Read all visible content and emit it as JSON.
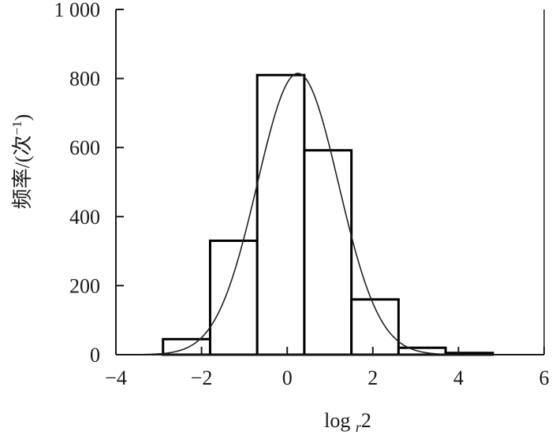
{
  "chart_data": {
    "type": "bar",
    "title": "",
    "xlabel_main": "log",
    "xlabel_sub": "r",
    "xlabel_tail": "2",
    "ylabel": "频率/(次",
    "ylabel_sup": "−1",
    "ylabel_close": ")",
    "xlim": [
      -4,
      6
    ],
    "ylim": [
      0,
      1000
    ],
    "x_ticks": [
      -4,
      -2,
      0,
      2,
      4,
      6
    ],
    "x_tick_labels": [
      "−4",
      "−2",
      "0",
      "2",
      "4",
      "6"
    ],
    "y_ticks": [
      0,
      200,
      400,
      600,
      800,
      1000
    ],
    "y_tick_labels": [
      "0",
      "200",
      "400",
      "600",
      "800",
      "1 000"
    ],
    "bins": [
      {
        "x0": -2.9,
        "x1": -1.8,
        "value": 45
      },
      {
        "x0": -1.8,
        "x1": -0.7,
        "value": 330
      },
      {
        "x0": -0.7,
        "x1": 0.4,
        "value": 810
      },
      {
        "x0": 0.4,
        "x1": 1.5,
        "value": 592
      },
      {
        "x0": 1.5,
        "x1": 2.6,
        "value": 160
      },
      {
        "x0": 2.6,
        "x1": 3.7,
        "value": 20
      },
      {
        "x0": 3.7,
        "x1": 4.8,
        "value": 5
      }
    ],
    "fit_curve": {
      "type": "normal",
      "peak": 815,
      "mean": 0.25,
      "sd": 0.95
    },
    "grid": false,
    "legend": "none",
    "colors": {
      "axis": "#1a1a1a",
      "bar_stroke": "#000000",
      "bar_fill": "#ffffff",
      "curve": "#222222"
    }
  }
}
